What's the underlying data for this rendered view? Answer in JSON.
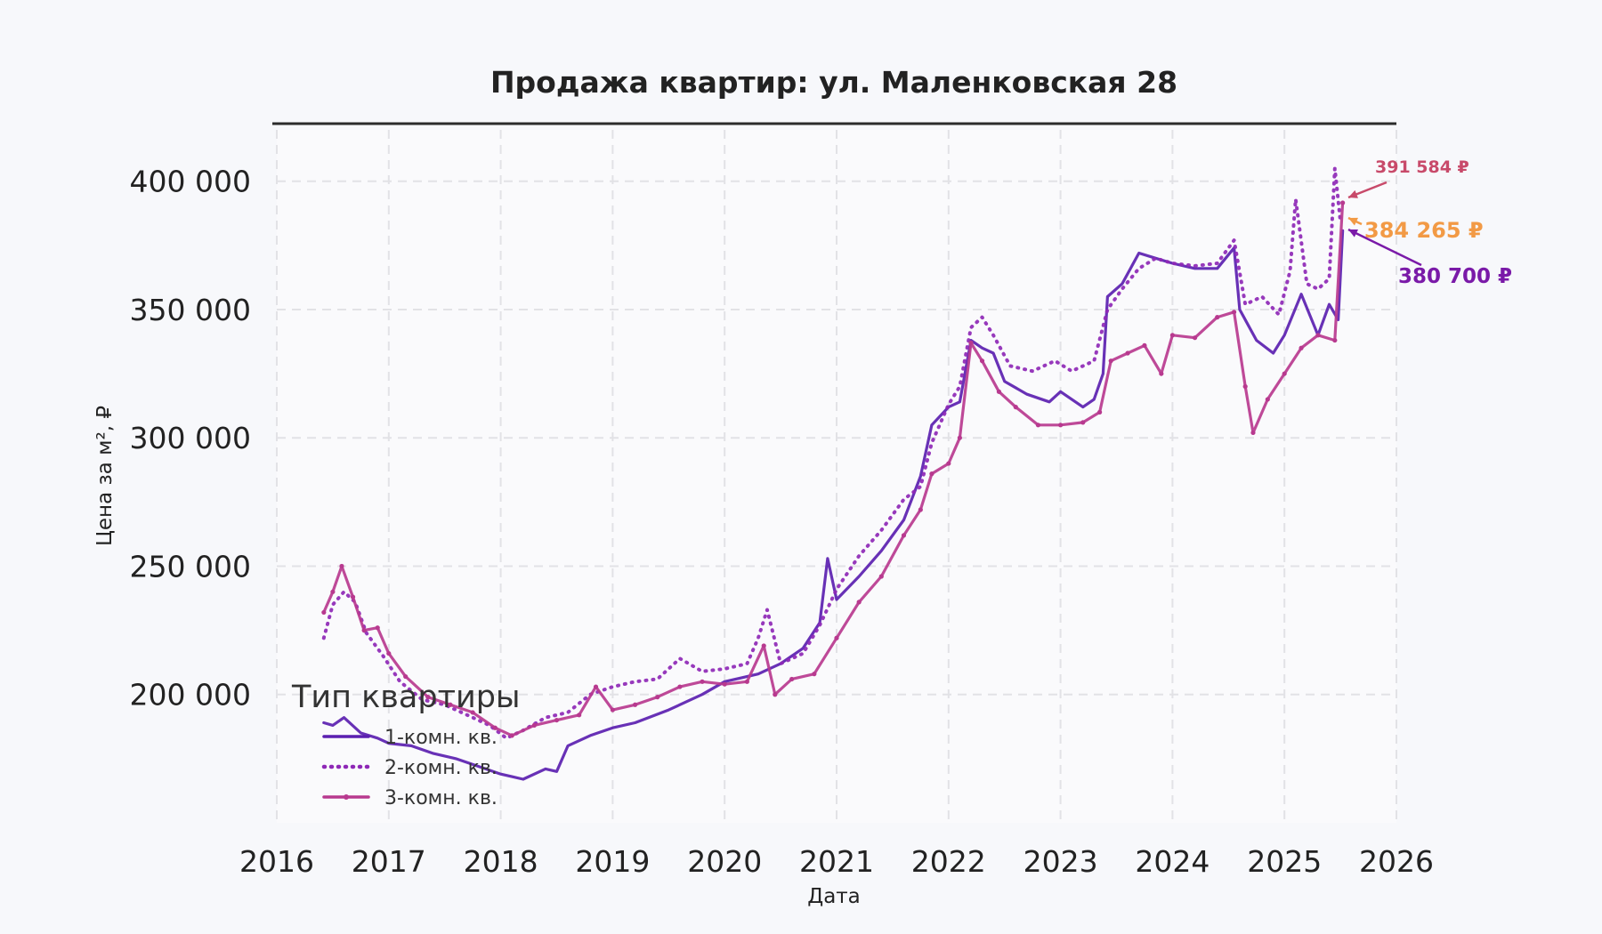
{
  "chart_data": {
    "type": "line",
    "title": "Продажа квартир: ул. Маленковская 28",
    "xlabel": "Дата",
    "ylabel": "Цена за м², ₽",
    "xlim": [
      2016,
      2026
    ],
    "ylim": [
      150000,
      420000
    ],
    "x_ticks": [
      2016,
      2017,
      2018,
      2019,
      2020,
      2021,
      2022,
      2023,
      2024,
      2025,
      2026
    ],
    "y_ticks": [
      200000,
      250000,
      300000,
      350000,
      400000
    ],
    "y_tick_labels": [
      "200 000",
      "250 000",
      "300 000",
      "350 000",
      "400 000"
    ],
    "grid": true,
    "legend": {
      "title": "Тип квартиры",
      "placement": "lower-left"
    },
    "series": [
      {
        "name": "1-комн. кв.",
        "color": "#5b1fb0",
        "style": "solid",
        "points": [
          [
            2016.42,
            189000
          ],
          [
            2016.5,
            188000
          ],
          [
            2016.6,
            191000
          ],
          [
            2016.75,
            185000
          ],
          [
            2016.9,
            183000
          ],
          [
            2017.0,
            181000
          ],
          [
            2017.2,
            180000
          ],
          [
            2017.4,
            177000
          ],
          [
            2017.6,
            175000
          ],
          [
            2017.8,
            172000
          ],
          [
            2018.0,
            169000
          ],
          [
            2018.1,
            168000
          ],
          [
            2018.2,
            167000
          ],
          [
            2018.4,
            171000
          ],
          [
            2018.5,
            170000
          ],
          [
            2018.6,
            180000
          ],
          [
            2018.8,
            184000
          ],
          [
            2019.0,
            187000
          ],
          [
            2019.2,
            189000
          ],
          [
            2019.5,
            194000
          ],
          [
            2019.8,
            200000
          ],
          [
            2020.0,
            205000
          ],
          [
            2020.3,
            208000
          ],
          [
            2020.5,
            212000
          ],
          [
            2020.7,
            218000
          ],
          [
            2020.85,
            228000
          ],
          [
            2020.92,
            253000
          ],
          [
            2021.0,
            237000
          ],
          [
            2021.2,
            246000
          ],
          [
            2021.4,
            256000
          ],
          [
            2021.6,
            268000
          ],
          [
            2021.75,
            285000
          ],
          [
            2021.85,
            305000
          ],
          [
            2022.0,
            312000
          ],
          [
            2022.1,
            314000
          ],
          [
            2022.2,
            338000
          ],
          [
            2022.3,
            335000
          ],
          [
            2022.4,
            333000
          ],
          [
            2022.5,
            322000
          ],
          [
            2022.7,
            317000
          ],
          [
            2022.9,
            314000
          ],
          [
            2023.0,
            318000
          ],
          [
            2023.2,
            312000
          ],
          [
            2023.3,
            315000
          ],
          [
            2023.38,
            325000
          ],
          [
            2023.42,
            355000
          ],
          [
            2023.55,
            360000
          ],
          [
            2023.7,
            372000
          ],
          [
            2023.85,
            370000
          ],
          [
            2024.0,
            368000
          ],
          [
            2024.2,
            366000
          ],
          [
            2024.4,
            366000
          ],
          [
            2024.55,
            374000
          ],
          [
            2024.6,
            350000
          ],
          [
            2024.75,
            338000
          ],
          [
            2024.9,
            333000
          ],
          [
            2025.0,
            340000
          ],
          [
            2025.15,
            356000
          ],
          [
            2025.3,
            340000
          ],
          [
            2025.4,
            352000
          ],
          [
            2025.48,
            346000
          ],
          [
            2025.52,
            380700
          ]
        ]
      },
      {
        "name": "2-комн. кв.",
        "color": "#8e28b6",
        "style": "dotted",
        "points": [
          [
            2016.42,
            222000
          ],
          [
            2016.5,
            235000
          ],
          [
            2016.6,
            240000
          ],
          [
            2016.7,
            236000
          ],
          [
            2016.8,
            224000
          ],
          [
            2016.95,
            215000
          ],
          [
            2017.1,
            205000
          ],
          [
            2017.3,
            198000
          ],
          [
            2017.5,
            196000
          ],
          [
            2017.7,
            192000
          ],
          [
            2017.9,
            188000
          ],
          [
            2018.05,
            183000
          ],
          [
            2018.2,
            186000
          ],
          [
            2018.4,
            191000
          ],
          [
            2018.6,
            193000
          ],
          [
            2018.8,
            200000
          ],
          [
            2019.0,
            203000
          ],
          [
            2019.2,
            205000
          ],
          [
            2019.4,
            206000
          ],
          [
            2019.6,
            214000
          ],
          [
            2019.8,
            209000
          ],
          [
            2020.0,
            210000
          ],
          [
            2020.2,
            212000
          ],
          [
            2020.3,
            222000
          ],
          [
            2020.38,
            233000
          ],
          [
            2020.5,
            212000
          ],
          [
            2020.7,
            216000
          ],
          [
            2020.85,
            227000
          ],
          [
            2021.0,
            241000
          ],
          [
            2021.2,
            254000
          ],
          [
            2021.4,
            264000
          ],
          [
            2021.6,
            276000
          ],
          [
            2021.75,
            281000
          ],
          [
            2021.85,
            298000
          ],
          [
            2022.0,
            313000
          ],
          [
            2022.1,
            320000
          ],
          [
            2022.2,
            343000
          ],
          [
            2022.3,
            347000
          ],
          [
            2022.4,
            340000
          ],
          [
            2022.55,
            328000
          ],
          [
            2022.75,
            326000
          ],
          [
            2022.95,
            330000
          ],
          [
            2023.1,
            326000
          ],
          [
            2023.3,
            330000
          ],
          [
            2023.42,
            350000
          ],
          [
            2023.55,
            358000
          ],
          [
            2023.7,
            366000
          ],
          [
            2023.85,
            370000
          ],
          [
            2024.0,
            368000
          ],
          [
            2024.2,
            367000
          ],
          [
            2024.4,
            368000
          ],
          [
            2024.55,
            377000
          ],
          [
            2024.65,
            352000
          ],
          [
            2024.8,
            355000
          ],
          [
            2024.95,
            348000
          ],
          [
            2025.05,
            365000
          ],
          [
            2025.1,
            393000
          ],
          [
            2025.2,
            360000
          ],
          [
            2025.3,
            358000
          ],
          [
            2025.4,
            362000
          ],
          [
            2025.45,
            405000
          ],
          [
            2025.5,
            384265
          ]
        ]
      },
      {
        "name": "3-комн. кв.",
        "color": "#b8398f",
        "style": "solid-marker",
        "points": [
          [
            2016.42,
            232000
          ],
          [
            2016.5,
            240000
          ],
          [
            2016.58,
            250000
          ],
          [
            2016.68,
            238000
          ],
          [
            2016.78,
            225000
          ],
          [
            2016.9,
            226000
          ],
          [
            2017.0,
            216000
          ],
          [
            2017.15,
            207000
          ],
          [
            2017.35,
            199000
          ],
          [
            2017.55,
            196000
          ],
          [
            2017.75,
            193000
          ],
          [
            2017.95,
            187000
          ],
          [
            2018.1,
            184000
          ],
          [
            2018.3,
            188000
          ],
          [
            2018.5,
            190000
          ],
          [
            2018.7,
            192000
          ],
          [
            2018.85,
            203000
          ],
          [
            2019.0,
            194000
          ],
          [
            2019.2,
            196000
          ],
          [
            2019.4,
            199000
          ],
          [
            2019.6,
            203000
          ],
          [
            2019.8,
            205000
          ],
          [
            2020.0,
            204000
          ],
          [
            2020.2,
            205000
          ],
          [
            2020.35,
            219000
          ],
          [
            2020.45,
            200000
          ],
          [
            2020.6,
            206000
          ],
          [
            2020.8,
            208000
          ],
          [
            2021.0,
            222000
          ],
          [
            2021.2,
            236000
          ],
          [
            2021.4,
            246000
          ],
          [
            2021.6,
            262000
          ],
          [
            2021.75,
            272000
          ],
          [
            2021.85,
            286000
          ],
          [
            2022.0,
            290000
          ],
          [
            2022.1,
            300000
          ],
          [
            2022.2,
            337000
          ],
          [
            2022.3,
            330000
          ],
          [
            2022.45,
            318000
          ],
          [
            2022.6,
            312000
          ],
          [
            2022.8,
            305000
          ],
          [
            2023.0,
            305000
          ],
          [
            2023.2,
            306000
          ],
          [
            2023.35,
            310000
          ],
          [
            2023.45,
            330000
          ],
          [
            2023.6,
            333000
          ],
          [
            2023.75,
            336000
          ],
          [
            2023.9,
            325000
          ],
          [
            2024.0,
            340000
          ],
          [
            2024.2,
            339000
          ],
          [
            2024.4,
            347000
          ],
          [
            2024.55,
            349000
          ],
          [
            2024.65,
            320000
          ],
          [
            2024.72,
            302000
          ],
          [
            2024.85,
            315000
          ],
          [
            2025.0,
            325000
          ],
          [
            2025.15,
            335000
          ],
          [
            2025.3,
            340000
          ],
          [
            2025.45,
            338000
          ],
          [
            2025.52,
            391584
          ]
        ]
      }
    ],
    "annotations": [
      {
        "text": "391 584 ₽",
        "color": "#c84a6a",
        "value": 391584
      },
      {
        "text": "384 265 ₽",
        "color": "#f29a45",
        "value": 384265
      },
      {
        "text": "380 700 ₽",
        "color": "#7a1aa8",
        "value": 380700
      }
    ]
  }
}
